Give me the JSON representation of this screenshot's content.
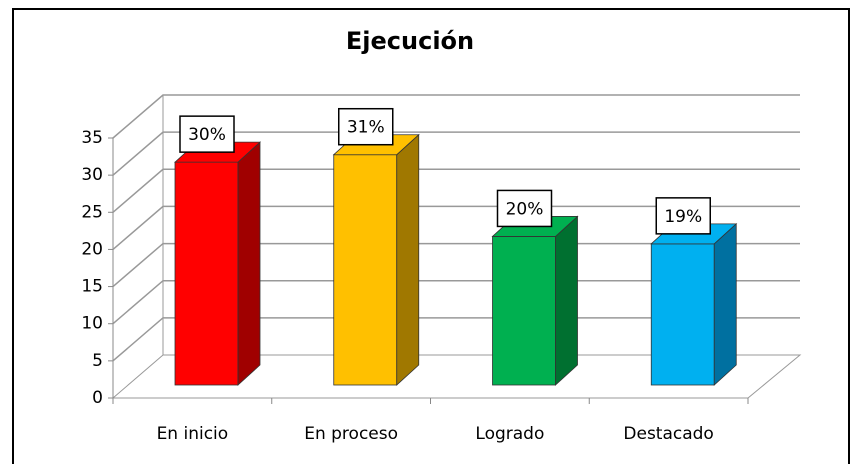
{
  "chart_data": {
    "type": "bar3d",
    "title": "Ejecución",
    "categories": [
      "En inicio",
      "En proceso",
      "Logrado",
      "Destacado"
    ],
    "values": [
      30,
      31,
      20,
      19
    ],
    "value_labels": [
      "30%",
      "31%",
      "20%",
      "19%"
    ],
    "colors": [
      "#ff0000",
      "#ffc000",
      "#00b050",
      "#00b0f0"
    ],
    "side_colors": [
      "#a00000",
      "#a07800",
      "#007030",
      "#0070a0"
    ],
    "ylim": [
      0,
      35
    ],
    "yticks": [
      0,
      5,
      10,
      15,
      20,
      25,
      30,
      35
    ],
    "grid": true
  }
}
